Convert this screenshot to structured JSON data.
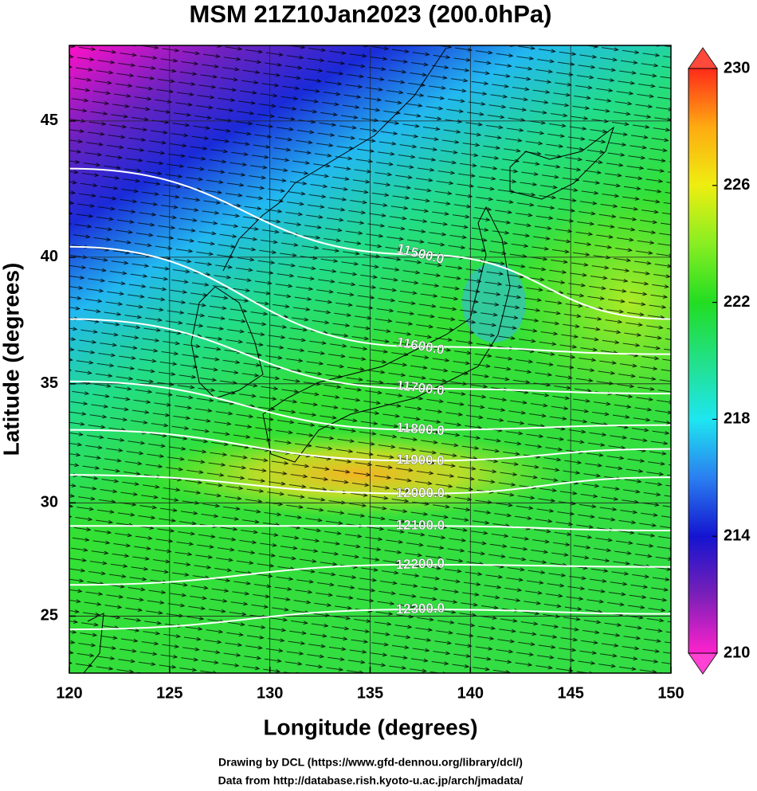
{
  "title": "MSM 21Z10Jan2023 (200.0hPa)",
  "map": {
    "projection": "mercator",
    "xlabel": "Longitude (degrees)",
    "ylabel": "Latitude  (degrees)",
    "xlim": [
      120,
      150
    ],
    "ylim": [
      22.4,
      47.6
    ],
    "xticks": [
      120,
      125,
      130,
      135,
      140,
      145,
      150
    ],
    "yticks": [
      25,
      30,
      35,
      40,
      45
    ],
    "grid": true,
    "contour_color": "#ffffff",
    "contour_lons": [
      120,
      137.5,
      150
    ],
    "contours": [
      {
        "level": {
          "value": 11500,
          "label": "11500.0"
        },
        "lats": [
          43.3,
          40.1,
          37.6
        ]
      },
      {
        "level": {
          "value": 11600,
          "label": "11600.0"
        },
        "lats": [
          40.4,
          36.5,
          36.2
        ]
      },
      {
        "level": {
          "value": 11700,
          "label": "11700.0"
        },
        "lats": [
          37.6,
          34.8,
          34.6
        ]
      },
      {
        "level": {
          "value": 11800,
          "label": "11800.0"
        },
        "lats": [
          35.1,
          33.1,
          33.3
        ]
      },
      {
        "level": {
          "value": 11900,
          "label": "11900.0"
        },
        "lats": [
          33.1,
          31.8,
          32.3
        ]
      },
      {
        "level": {
          "value": 12000,
          "label": "12000.0"
        },
        "lats": [
          31.2,
          30.4,
          31.1
        ]
      },
      {
        "level": {
          "value": 12100,
          "label": "12100.0"
        },
        "lats": [
          29.0,
          29.0,
          28.8
        ]
      },
      {
        "level": {
          "value": 12200,
          "label": "12200.0"
        },
        "lats": [
          26.4,
          27.3,
          27.2
        ]
      },
      {
        "level": {
          "value": 12300,
          "label": "12300.0"
        },
        "lats": [
          24.4,
          25.3,
          25.1
        ]
      }
    ]
  },
  "colorbar": {
    "lim": [
      210,
      230
    ],
    "ticks": [
      210,
      214,
      218,
      222,
      226,
      230
    ],
    "colors": [
      "#ff22cc",
      "#7a1fb8",
      "#1414d0",
      "#2a7ff0",
      "#1ee6f0",
      "#22e088",
      "#22dd22",
      "#88ee22",
      "#eeee11",
      "#ffaa11",
      "#ff2a1a"
    ]
  },
  "credits": [
    "Drawing by DCL (https://www.gfd-dennou.org/library/dcl/)",
    "Data from http://database.rish.kyoto-u.ac.jp/arch/jmadata/"
  ]
}
